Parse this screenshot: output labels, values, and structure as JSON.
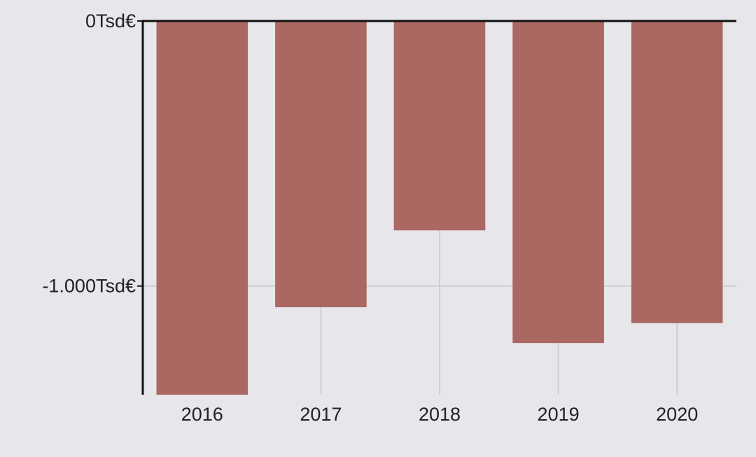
{
  "chart_data": {
    "type": "bar",
    "title": "",
    "xlabel": "",
    "ylabel": "",
    "categories": [
      "2016",
      "2017",
      "2018",
      "2019",
      "2020"
    ],
    "values": [
      -1410,
      -1080,
      -790,
      -1215,
      -1140
    ],
    "ylim": [
      -1410,
      0
    ],
    "y_ticks": [
      {
        "value": 0,
        "label": "0Tsd€"
      },
      {
        "value": -1000,
        "label": "-1.000Tsd€"
      }
    ],
    "grid": true,
    "legend": "none",
    "colors": {
      "bar": "#a8635e",
      "grid": "#cfced3",
      "axis": "#111111",
      "background": "#e7e6ea"
    }
  }
}
